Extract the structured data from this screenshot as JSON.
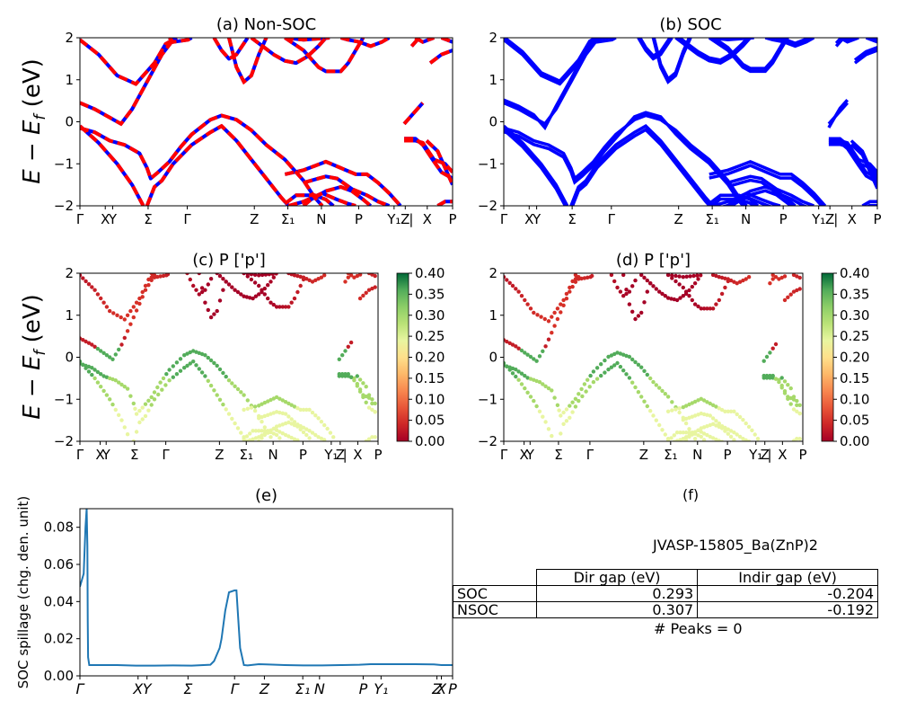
{
  "chart_data": [
    {
      "type": "line",
      "title": "(a) Non-SOC",
      "ylabel": "$E - E_f$ (eV)",
      "ylim": [
        -2,
        2
      ],
      "yticks": [
        "2",
        "1",
        "0",
        "−1",
        "−2"
      ],
      "xticks": [
        "Γ",
        "X",
        "Y",
        "Σ",
        "Γ",
        "Z",
        "Σ₁",
        "N",
        "P",
        "Y₁",
        "Z",
        "|",
        "X",
        "P"
      ],
      "series": [
        {
          "color": "#0000ff",
          "values": "spin-up bands"
        },
        {
          "color": "#ff0000",
          "values": "spin-down bands (dashed overlay)"
        }
      ],
      "bands": [
        [
          [
            0,
            1.95
          ],
          [
            0.05,
            1.6
          ],
          [
            0.1,
            1.1
          ],
          [
            0.15,
            0.9
          ],
          [
            0.2,
            1.4
          ],
          [
            0.23,
            1.85
          ],
          [
            0.26,
            2.0
          ]
        ],
        [
          [
            0,
            0.45
          ],
          [
            0.04,
            0.3
          ],
          [
            0.08,
            0.1
          ],
          [
            0.11,
            -0.05
          ],
          [
            0.14,
            0.3
          ],
          [
            0.18,
            0.95
          ],
          [
            0.22,
            1.6
          ],
          [
            0.25,
            1.95
          ]
        ],
        [
          [
            0,
            -0.15
          ],
          [
            0.04,
            -0.25
          ],
          [
            0.08,
            -0.45
          ],
          [
            0.12,
            -0.55
          ],
          [
            0.16,
            -0.75
          ],
          [
            0.18,
            -1.1
          ],
          [
            0.19,
            -1.35
          ],
          [
            0.21,
            -1.2
          ],
          [
            0.24,
            -0.95
          ],
          [
            0.27,
            -0.6
          ],
          [
            0.3,
            -0.3
          ],
          [
            0.35,
            0.05
          ],
          [
            0.38,
            0.15
          ],
          [
            0.42,
            0.05
          ],
          [
            0.46,
            -0.2
          ],
          [
            0.5,
            -0.55
          ],
          [
            0.55,
            -0.9
          ],
          [
            0.6,
            -1.4
          ],
          [
            0.63,
            -1.8
          ],
          [
            0.65,
            -2.0
          ]
        ],
        [
          [
            0,
            -0.1
          ],
          [
            0.05,
            -0.5
          ],
          [
            0.1,
            -1.0
          ],
          [
            0.14,
            -1.5
          ],
          [
            0.17,
            -2.0
          ]
        ],
        [
          [
            0.18,
            -2.0
          ],
          [
            0.2,
            -1.55
          ],
          [
            0.22,
            -1.4
          ],
          [
            0.25,
            -1.0
          ],
          [
            0.3,
            -0.55
          ],
          [
            0.35,
            -0.25
          ],
          [
            0.38,
            -0.1
          ],
          [
            0.42,
            -0.45
          ],
          [
            0.46,
            -0.9
          ],
          [
            0.5,
            -1.35
          ],
          [
            0.54,
            -1.8
          ],
          [
            0.56,
            -2.0
          ]
        ],
        [
          [
            0.24,
            2.0
          ],
          [
            0.25,
            1.9
          ],
          [
            0.29,
            1.95
          ],
          [
            0.3,
            2.0
          ]
        ],
        [
          [
            0.36,
            2.0
          ],
          [
            0.38,
            1.7
          ],
          [
            0.4,
            1.5
          ],
          [
            0.42,
            1.6
          ],
          [
            0.45,
            2.0
          ]
        ],
        [
          [
            0.4,
            2.0
          ],
          [
            0.42,
            1.3
          ],
          [
            0.44,
            0.95
          ],
          [
            0.46,
            1.1
          ],
          [
            0.48,
            1.6
          ],
          [
            0.5,
            2.0
          ]
        ],
        [
          [
            0.46,
            2.0
          ],
          [
            0.49,
            1.8
          ],
          [
            0.52,
            1.6
          ],
          [
            0.55,
            1.45
          ],
          [
            0.58,
            1.4
          ],
          [
            0.61,
            1.55
          ],
          [
            0.64,
            1.8
          ],
          [
            0.66,
            2.0
          ]
        ],
        [
          [
            0.55,
            2.0
          ],
          [
            0.6,
            1.7
          ],
          [
            0.64,
            1.3
          ],
          [
            0.66,
            1.2
          ],
          [
            0.7,
            1.2
          ],
          [
            0.72,
            1.4
          ],
          [
            0.74,
            1.7
          ],
          [
            0.76,
            2.0
          ]
        ],
        [
          [
            0.55,
            2.0
          ],
          [
            0.6,
            1.95
          ],
          [
            0.67,
            2.0
          ]
        ],
        [
          [
            0.7,
            2.0
          ],
          [
            0.72,
            1.95
          ],
          [
            0.75,
            1.9
          ],
          [
            0.78,
            1.8
          ],
          [
            0.81,
            1.9
          ],
          [
            0.83,
            2.0
          ]
        ],
        [
          [
            0.55,
            -1.95
          ],
          [
            0.58,
            -1.75
          ],
          [
            0.63,
            -1.75
          ],
          [
            0.66,
            -1.85
          ],
          [
            0.68,
            -2.0
          ]
        ],
        [
          [
            0.55,
            -1.25
          ],
          [
            0.6,
            -1.15
          ],
          [
            0.63,
            -1.05
          ],
          [
            0.66,
            -0.95
          ],
          [
            0.7,
            -1.1
          ],
          [
            0.74,
            -1.25
          ],
          [
            0.77,
            -1.25
          ],
          [
            0.8,
            -1.45
          ],
          [
            0.83,
            -1.7
          ],
          [
            0.86,
            -2.0
          ]
        ],
        [
          [
            0.56,
            -2.0
          ],
          [
            0.6,
            -1.9
          ],
          [
            0.65,
            -1.7
          ],
          [
            0.69,
            -1.85
          ],
          [
            0.72,
            -1.95
          ],
          [
            0.74,
            -2.0
          ]
        ],
        [
          [
            0.6,
            -1.45
          ],
          [
            0.64,
            -1.35
          ],
          [
            0.66,
            -1.3
          ],
          [
            0.69,
            -1.35
          ],
          [
            0.73,
            -1.6
          ],
          [
            0.77,
            -1.75
          ],
          [
            0.8,
            -1.9
          ],
          [
            0.83,
            -2.0
          ]
        ],
        [
          [
            0.6,
            -2.0
          ],
          [
            0.62,
            -1.85
          ],
          [
            0.66,
            -1.65
          ],
          [
            0.7,
            -1.55
          ],
          [
            0.73,
            -1.65
          ],
          [
            0.76,
            -1.85
          ],
          [
            0.78,
            -2.0
          ]
        ],
        [
          [
            0.89,
            1.8
          ],
          [
            0.91,
            2.0
          ]
        ],
        [
          [
            0.9,
            2.0
          ],
          [
            0.92,
            1.9
          ],
          [
            0.95,
            2.0
          ]
        ],
        [
          [
            0.87,
            -0.05
          ],
          [
            0.9,
            0.25
          ],
          [
            0.92,
            0.45
          ]
        ],
        [
          [
            0.87,
            -0.45
          ],
          [
            0.9,
            -0.45
          ],
          [
            0.92,
            -0.5
          ],
          [
            0.95,
            -0.9
          ],
          [
            0.98,
            -1.0
          ],
          [
            1.0,
            -1.2
          ]
        ],
        [
          [
            0.87,
            -0.4
          ],
          [
            0.9,
            -0.4
          ],
          [
            0.92,
            -0.55
          ],
          [
            0.95,
            -0.95
          ],
          [
            0.97,
            -1.2
          ],
          [
            1.0,
            -1.35
          ]
        ],
        [
          [
            0.93,
            -0.45
          ],
          [
            0.96,
            -0.7
          ],
          [
            1.0,
            -1.5
          ]
        ],
        [
          [
            0.94,
            1.4
          ],
          [
            0.97,
            1.6
          ],
          [
            1.0,
            1.7
          ]
        ],
        [
          [
            0.96,
            -2.0
          ],
          [
            0.98,
            -1.9
          ],
          [
            1.0,
            -1.9
          ]
        ],
        [
          [
            0.97,
            2.0
          ],
          [
            1.0,
            1.9
          ]
        ]
      ]
    },
    {
      "type": "line",
      "title": "(b) SOC",
      "ylim": [
        -2,
        2
      ],
      "yticks": [
        "2",
        "1",
        "0",
        "−1",
        "−2"
      ],
      "xticks": [
        "Γ",
        "X",
        "Y",
        "Σ",
        "Γ",
        "Z",
        "Σ₁",
        "N",
        "P",
        "Y₁",
        "Z",
        "|",
        "X",
        "P"
      ],
      "series": [
        {
          "color": "#0000ff",
          "values": "spin-orbit bands"
        }
      ]
    },
    {
      "type": "scatter",
      "title": "(c)  P ['p']",
      "ylabel": "$E - E_f$ (eV)",
      "ylim": [
        -2,
        2
      ],
      "yticks": [
        "2",
        "1",
        "0",
        "−1",
        "−2"
      ],
      "xticks": [
        "Γ",
        "X",
        "Y",
        "Σ",
        "Γ",
        "Z",
        "Σ₁",
        "N",
        "P",
        "Y₁",
        "Z",
        "|",
        "X",
        "P"
      ],
      "colorbar": {
        "min": 0.0,
        "max": 0.4,
        "ticks": [
          "0.00",
          "0.05",
          "0.10",
          "0.15",
          "0.20",
          "0.25",
          "0.30",
          "0.35",
          "0.40"
        ]
      },
      "weights_note": "valence near Γ ≈ 0.35–0.40, deeper valence ≈ 0.20–0.28, conduction ≈ 0.00–0.08"
    },
    {
      "type": "scatter",
      "title": "(d) P ['p']",
      "ylim": [
        -2,
        2
      ],
      "yticks": [
        "2",
        "1",
        "0",
        "−1",
        "−2"
      ],
      "xticks": [
        "Γ",
        "X",
        "Y",
        "Σ",
        "Γ",
        "Z",
        "Σ₁",
        "N",
        "P",
        "Y₁",
        "Z",
        "|",
        "X",
        "P"
      ],
      "colorbar": {
        "min": 0.0,
        "max": 0.4,
        "ticks": [
          "0.00",
          "0.05",
          "0.10",
          "0.15",
          "0.20",
          "0.25",
          "0.30",
          "0.35",
          "0.40"
        ]
      }
    },
    {
      "type": "line",
      "title": "(e)",
      "ylabel": "SOC spillage (chg. den. unit)",
      "ylim": [
        0,
        0.09
      ],
      "yticks": [
        "0.00",
        "0.02",
        "0.04",
        "0.06",
        "0.08"
      ],
      "xticks": [
        "Γ",
        "X",
        "Y",
        "Σ",
        "Γ",
        "Z",
        "Σ₁",
        "N",
        "P",
        "Y₁",
        "Z",
        "X",
        "P"
      ],
      "series": [
        {
          "color": "#1f77b4",
          "x": [
            0,
            0.01,
            0.015,
            0.018,
            0.02,
            0.021,
            0.022,
            0.025,
            0.03,
            0.05,
            0.1,
            0.15,
            0.2,
            0.25,
            0.3,
            0.35,
            0.36,
            0.375,
            0.38,
            0.39,
            0.4,
            0.415,
            0.42,
            0.425,
            0.43,
            0.44,
            0.45,
            0.48,
            0.5,
            0.55,
            0.6,
            0.65,
            0.7,
            0.75,
            0.78,
            0.8,
            0.85,
            0.9,
            0.95,
            0.97,
            1.0
          ],
          "values": [
            0.048,
            0.055,
            0.08,
            0.09,
            0.07,
            0.03,
            0.01,
            0.0058,
            0.0058,
            0.0058,
            0.0058,
            0.0055,
            0.0055,
            0.0056,
            0.0055,
            0.006,
            0.008,
            0.015,
            0.02,
            0.035,
            0.045,
            0.046,
            0.046,
            0.03,
            0.015,
            0.0058,
            0.0056,
            0.0063,
            0.0062,
            0.0058,
            0.0056,
            0.0056,
            0.0058,
            0.006,
            0.0063,
            0.0063,
            0.0063,
            0.0063,
            0.0062,
            0.0058,
            0.0058
          ]
        }
      ]
    }
  ],
  "panel_f": {
    "title": "(f)",
    "material": "JVASP-15805_Ba(ZnP)2",
    "col_headers": [
      "Dir gap (eV)",
      "Indir gap (eV)"
    ],
    "rows": [
      {
        "label": "SOC",
        "dir": "0.293",
        "indir": "-0.204"
      },
      {
        "label": "NSOC",
        "dir": "0.307",
        "indir": "-0.192"
      }
    ],
    "peaks": "# Peaks = 0"
  }
}
